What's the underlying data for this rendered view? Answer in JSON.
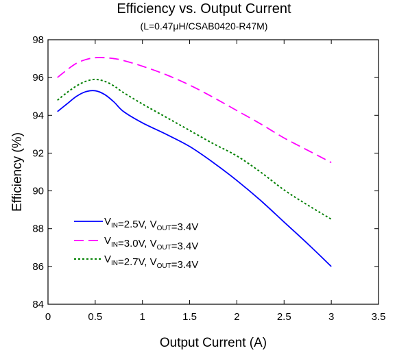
{
  "chart_data": {
    "type": "line",
    "title": "Efficiency vs. Output Current",
    "subtitle": "(L=0.47μH/CSAB0420-R47M)",
    "xlabel": "Output Current (A)",
    "ylabel": "Efficiency (%)",
    "xlim": [
      0,
      3.5
    ],
    "ylim": [
      84,
      98
    ],
    "xticks": [
      0,
      0.5,
      1,
      1.5,
      2,
      2.5,
      3,
      3.5
    ],
    "xtick_labels": [
      "0",
      "0.5",
      "1",
      "1.5",
      "2",
      "2.5",
      "3",
      "3.5"
    ],
    "yticks": [
      84,
      86,
      88,
      90,
      92,
      94,
      96,
      98
    ],
    "ytick_labels": [
      "84",
      "86",
      "88",
      "90",
      "92",
      "94",
      "96",
      "98"
    ],
    "grid": false,
    "legend_position": "bottom-left",
    "series": [
      {
        "legend_parts": [
          {
            "text": "V",
            "sub": "IN"
          },
          {
            "text": "=2.5V, V",
            "sub": "OUT"
          },
          {
            "text": "=3.4V",
            "sub": ""
          }
        ],
        "color": "#0000ff",
        "style": "solid",
        "x": [
          0.1,
          0.2,
          0.3,
          0.4,
          0.5,
          0.6,
          0.7,
          0.8,
          1.0,
          1.25,
          1.5,
          1.75,
          2.0,
          2.25,
          2.5,
          2.75,
          3.0
        ],
        "y": [
          94.2,
          94.6,
          95.0,
          95.25,
          95.3,
          95.1,
          94.7,
          94.2,
          93.6,
          93.0,
          92.35,
          91.5,
          90.55,
          89.5,
          88.35,
          87.2,
          86.0
        ]
      },
      {
        "legend_parts": [
          {
            "text": "V",
            "sub": "IN"
          },
          {
            "text": "=3.0V, V",
            "sub": "OUT"
          },
          {
            "text": "=3.4V",
            "sub": ""
          }
        ],
        "color": "#ff00ff",
        "style": "dashed",
        "x": [
          0.1,
          0.2,
          0.3,
          0.4,
          0.5,
          0.6,
          0.7,
          0.8,
          1.0,
          1.25,
          1.5,
          1.75,
          2.0,
          2.25,
          2.5,
          2.75,
          3.0
        ],
        "y": [
          96.0,
          96.4,
          96.75,
          96.95,
          97.05,
          97.05,
          97.0,
          96.9,
          96.6,
          96.15,
          95.6,
          94.95,
          94.25,
          93.55,
          92.8,
          92.15,
          91.5
        ]
      },
      {
        "legend_parts": [
          {
            "text": "V",
            "sub": "IN"
          },
          {
            "text": "=2.7V, V",
            "sub": "OUT"
          },
          {
            "text": "=3.4V",
            "sub": ""
          }
        ],
        "color": "#008000",
        "style": "dotted",
        "x": [
          0.1,
          0.2,
          0.3,
          0.4,
          0.5,
          0.6,
          0.7,
          0.8,
          1.0,
          1.25,
          1.5,
          1.75,
          2.0,
          2.25,
          2.5,
          2.75,
          3.0
        ],
        "y": [
          94.8,
          95.2,
          95.55,
          95.8,
          95.9,
          95.8,
          95.55,
          95.2,
          94.6,
          93.9,
          93.2,
          92.5,
          91.85,
          91.0,
          90.05,
          89.25,
          88.5
        ]
      }
    ]
  }
}
